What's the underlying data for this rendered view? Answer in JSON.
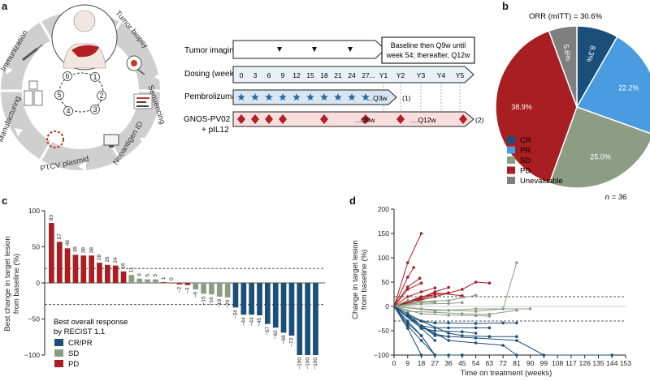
{
  "figure": {
    "panel_a": {
      "label": "a",
      "cycle_steps": [
        {
          "n": "1",
          "name": "Tumor biopsy"
        },
        {
          "n": "2",
          "name": "Sequencing"
        },
        {
          "n": "3",
          "name": "Neoantigen ID"
        },
        {
          "n": "4",
          "name": "PTCV plasmid"
        },
        {
          "n": "5",
          "name": "Manufacturing"
        },
        {
          "n": "6",
          "name": "Immunization"
        }
      ],
      "rows": {
        "imaging": "Tumor imaging",
        "dosing": "Dosing (weeks)",
        "pembro": "Pembrolizumab",
        "gnos1": "GNOS-PV02",
        "gnos2": "+ pIL12"
      },
      "imaging_note": "Baseline then Q9w until week 54; thereafter, Q12w",
      "weeks": [
        "0",
        "3",
        "6",
        "9",
        "12",
        "15",
        "18",
        "21",
        "24",
        "27",
        "...",
        "Y1",
        "Y2",
        "Y3",
        "Y4",
        "Y5"
      ],
      "pembro_text": "...Q3w",
      "pembro_note": "(1)",
      "gnos_q9": "...Q9w",
      "gnos_q12": "....Q12w",
      "gnos_note": "(2)"
    },
    "panel_b": {
      "label": "b",
      "title": "ORR (mITT) = 30.6%",
      "n_label": "n = 36",
      "colors": [
        "#1b4f7a",
        "#4a9be0",
        "#8c9d83",
        "#a81e22",
        "#7f7f7f"
      ]
    },
    "panel_c": {
      "label": "c",
      "ylabel": [
        "Best change in target lesion",
        "from baseline (%)"
      ],
      "legend_title": [
        "Best overall response",
        "by RECIST 1.1"
      ],
      "legend": [
        {
          "name": "CR/PR",
          "color": "#1b4f7a"
        },
        {
          "name": "SD",
          "color": "#8c9d83"
        },
        {
          "name": "PD",
          "color": "#a81e22"
        }
      ]
    },
    "panel_d": {
      "label": "d",
      "ylabel": [
        "Change in target lesion",
        "from baseline (%)"
      ],
      "xlabel": "Time on treatment (weeks)"
    }
  },
  "chart_data": [
    {
      "type": "pie",
      "title": "ORR (mITT) = 30.6%",
      "labels": [
        "CR",
        "PR",
        "SD",
        "PD",
        "Unevaluable"
      ],
      "values": [
        8.3,
        22.2,
        25.0,
        38.9,
        5.6
      ],
      "value_labels": [
        "8.3%",
        "22.2%",
        "25.0%",
        "38.9%",
        "5.6%"
      ],
      "colors": [
        "#1b4f7a",
        "#4a9be0",
        "#8c9d83",
        "#a81e22",
        "#7f7f7f"
      ],
      "legend_position": "bottom-left"
    },
    {
      "type": "bar",
      "ylabel": "Best change in target lesion from baseline (%)",
      "ylim": [
        -100,
        100
      ],
      "yticks": [
        -100,
        -50,
        0,
        50,
        100
      ],
      "reference_lines": [
        20,
        -30
      ],
      "values": [
        83,
        57,
        48,
        39,
        38,
        38,
        28,
        25,
        24,
        16,
        11,
        6,
        5,
        5,
        1,
        0,
        -2,
        -3,
        -9,
        -15,
        -16,
        -19,
        -20,
        -34,
        -44,
        -44,
        -45,
        -57,
        -62,
        -69,
        -73,
        -100,
        -100,
        -100
      ],
      "labels": [
        "83",
        "57",
        "48",
        "39",
        "38",
        "38",
        "28",
        "25",
        "24",
        "16",
        "11",
        "6",
        "5",
        "5",
        "1",
        "0",
        "−2",
        "−3",
        "−9",
        "−15",
        "−16",
        "−19",
        "−20",
        "−34",
        "−44",
        "−44",
        "−45",
        "−57",
        "−62",
        "−69",
        "−73",
        "−100",
        "−100",
        "−100"
      ],
      "response": [
        "PD",
        "PD",
        "PD",
        "PD",
        "PD",
        "PD",
        "PD",
        "PD",
        "PD",
        "PD",
        "SD",
        "SD",
        "SD",
        "SD",
        "PD",
        "PD",
        "PD",
        "PD",
        "SD",
        "SD",
        "SD",
        "SD",
        "SD",
        "CR/PR",
        "CR/PR",
        "CR/PR",
        "CR/PR",
        "CR/PR",
        "CR/PR",
        "CR/PR",
        "CR/PR",
        "CR/PR",
        "CR/PR",
        "CR/PR"
      ],
      "legend_position": "bottom-left"
    },
    {
      "type": "line",
      "xlabel": "Time on treatment (weeks)",
      "ylabel": "Change in target lesion from baseline (%)",
      "xlim": [
        0,
        153
      ],
      "xticks": [
        0,
        9,
        18,
        27,
        36,
        45,
        54,
        63,
        72,
        81,
        90,
        99,
        108,
        117,
        126,
        135,
        144,
        153
      ],
      "ylim": [
        -100,
        200
      ],
      "yticks": [
        -100,
        -50,
        0,
        50,
        100,
        150,
        200
      ],
      "reference_lines": [
        20,
        -30
      ],
      "series": [
        {
          "group": "PD",
          "x": [
            0,
            9,
            18
          ],
          "y": [
            0,
            90,
            150
          ]
        },
        {
          "group": "PD",
          "x": [
            0,
            9,
            13
          ],
          "y": [
            0,
            60,
            80
          ]
        },
        {
          "group": "PD",
          "x": [
            0,
            9,
            17
          ],
          "y": [
            0,
            40,
            58
          ]
        },
        {
          "group": "PD",
          "x": [
            0,
            9,
            18
          ],
          "y": [
            0,
            35,
            48
          ]
        },
        {
          "group": "PD",
          "x": [
            0,
            9,
            18,
            27
          ],
          "y": [
            0,
            20,
            30,
            38
          ]
        },
        {
          "group": "PD",
          "x": [
            0,
            9,
            18,
            27,
            36
          ],
          "y": [
            0,
            10,
            18,
            30,
            39
          ]
        },
        {
          "group": "PD",
          "x": [
            0,
            18,
            36
          ],
          "y": [
            0,
            20,
            28
          ]
        },
        {
          "group": "PD",
          "x": [
            0,
            18,
            27
          ],
          "y": [
            0,
            15,
            25
          ]
        },
        {
          "group": "PD",
          "x": [
            0,
            27,
            45
          ],
          "y": [
            0,
            28,
            22
          ]
        },
        {
          "group": "PD",
          "x": [
            0,
            27,
            45,
            54,
            63
          ],
          "y": [
            0,
            20,
            35,
            50,
            48
          ]
        },
        {
          "group": "PD",
          "x": [
            0,
            9,
            18
          ],
          "y": [
            0,
            10,
            16
          ]
        },
        {
          "group": "SD",
          "x": [
            0,
            9,
            18,
            27
          ],
          "y": [
            0,
            12,
            10,
            8
          ]
        },
        {
          "group": "SD",
          "x": [
            0,
            18,
            36,
            54
          ],
          "y": [
            0,
            10,
            12,
            23
          ]
        },
        {
          "group": "SD",
          "x": [
            0,
            18,
            36,
            45
          ],
          "y": [
            0,
            5,
            6,
            8
          ]
        },
        {
          "group": "SD",
          "x": [
            0,
            18,
            36,
            54,
            72,
            81
          ],
          "y": [
            0,
            -5,
            -8,
            -10,
            -5,
            90
          ]
        },
        {
          "group": "SD",
          "x": [
            0,
            9,
            27,
            45,
            63,
            81
          ],
          "y": [
            0,
            -10,
            -12,
            -15,
            -16,
            -8
          ]
        },
        {
          "group": "SD",
          "x": [
            0,
            18,
            36,
            54,
            63
          ],
          "y": [
            0,
            -15,
            -18,
            -19,
            -20
          ]
        },
        {
          "group": "SD",
          "x": [
            0,
            27,
            54,
            72,
            90
          ],
          "y": [
            0,
            -9,
            -5,
            -5,
            -5
          ]
        },
        {
          "group": "SD",
          "x": [
            0,
            18,
            27
          ],
          "y": [
            0,
            8,
            10
          ]
        },
        {
          "group": "CR/PR",
          "x": [
            0,
            27,
            54,
            81,
            99,
            144
          ],
          "y": [
            0,
            -60,
            -65,
            -70,
            -100,
            -100
          ]
        },
        {
          "group": "CR/PR",
          "x": [
            0,
            18,
            36,
            54,
            72,
            81
          ],
          "y": [
            0,
            -40,
            -70,
            -75,
            -80,
            -100
          ]
        },
        {
          "group": "CR/PR",
          "x": [
            0,
            18,
            36,
            45,
            63,
            81
          ],
          "y": [
            0,
            -30,
            -55,
            -60,
            -62,
            -62
          ]
        },
        {
          "group": "CR/PR",
          "x": [
            0,
            9,
            18,
            27,
            36,
            45
          ],
          "y": [
            0,
            -40,
            -70,
            -100,
            -100,
            -100
          ]
        },
        {
          "group": "CR/PR",
          "x": [
            0,
            9,
            18,
            27,
            45
          ],
          "y": [
            0,
            -30,
            -60,
            -100,
            -100
          ]
        },
        {
          "group": "CR/PR",
          "x": [
            0,
            9,
            18,
            27,
            36,
            54,
            72,
            81
          ],
          "y": [
            0,
            -20,
            -30,
            -34,
            -34,
            -35,
            -34,
            -34
          ]
        },
        {
          "group": "CR/PR",
          "x": [
            0,
            18,
            27,
            36,
            54,
            63
          ],
          "y": [
            0,
            -40,
            -44,
            -44,
            -44,
            -44
          ]
        },
        {
          "group": "CR/PR",
          "x": [
            0,
            18,
            27,
            45,
            54
          ],
          "y": [
            0,
            -45,
            -50,
            -52,
            -55
          ]
        },
        {
          "group": "CR/PR",
          "x": [
            0,
            9,
            18,
            27
          ],
          "y": [
            0,
            -20,
            -45,
            -70
          ]
        },
        {
          "group": "CR/PR",
          "x": [
            0,
            9,
            18,
            27,
            36
          ],
          "y": [
            0,
            -15,
            -40,
            -57,
            -62
          ]
        },
        {
          "group": "CR/PR",
          "x": [
            0,
            9,
            18,
            27
          ],
          "y": [
            0,
            -35,
            -60,
            -100
          ]
        },
        {
          "group": "CR/PR",
          "x": [
            0,
            9,
            18
          ],
          "y": [
            0,
            -45,
            -100
          ]
        }
      ]
    }
  ]
}
